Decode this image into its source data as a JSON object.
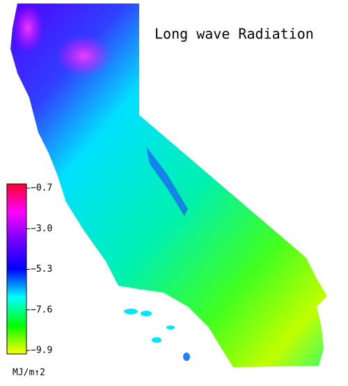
{
  "title": "Long wave Radiation",
  "colorbar": {
    "lim": [
      -0.7,
      -9.9
    ],
    "ticks": [
      {
        "value": -0.7,
        "label": "−0.7"
      },
      {
        "value": -3.0,
        "label": "−3.0"
      },
      {
        "value": -5.3,
        "label": "−5.3"
      },
      {
        "value": -7.6,
        "label": "−7.6"
      },
      {
        "value": -9.9,
        "label": "−9.9"
      }
    ],
    "colors": [
      "#ff0030",
      "#ff00ff",
      "#7000ff",
      "#0000ff",
      "#00ffff",
      "#00ff00",
      "#ffff00"
    ],
    "unit": "MJ/m↑2"
  }
}
